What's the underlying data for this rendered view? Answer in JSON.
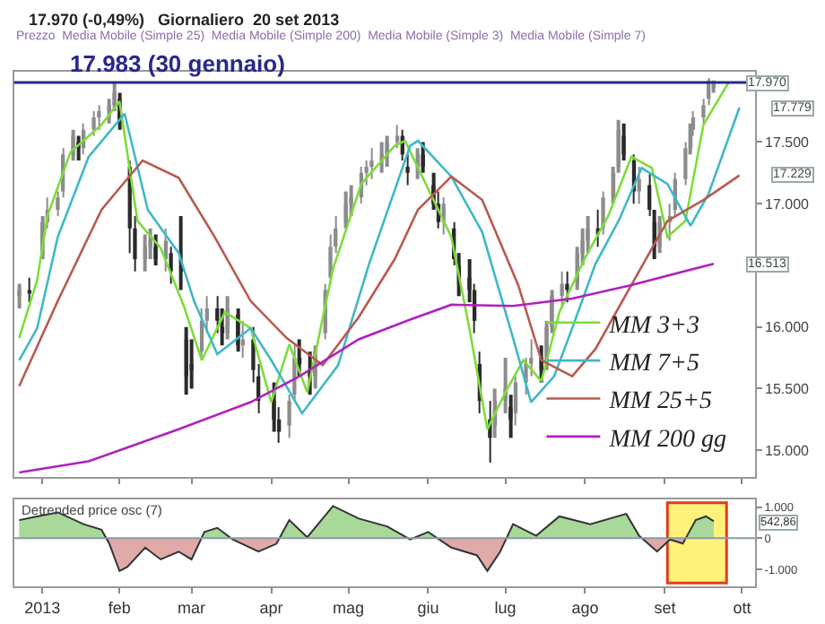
{
  "chart_data": [
    {
      "type": "candlestick",
      "title": "17.970 (-0,49%)   Giornaliero  20 set 2013",
      "colors": [
        "#8c8c8c",
        "#2a2a2a",
        "#8c8c8c",
        "#8c8c8c",
        "#8c8c8c",
        "#8c8c8c",
        "#8c8c8c",
        "#2a2a2a",
        "#8c8c8c",
        "#8c8c8c",
        "#8c8c8c",
        "#8c8c8c",
        "#8c8c8c",
        "#2a2a2a",
        "#2a2a2a",
        "#2a2a2a",
        "#8c8c8c",
        "#8c8c8c",
        "#2a2a2a",
        "#8c8c8c",
        "#2a2a2a",
        "#2a2a2a",
        "#2a2a2a",
        "#2a2a2a",
        "#8c8c8c",
        "#8c8c8c",
        "#2a2a2a",
        "#2a2a2a",
        "#8c8c8c",
        "#2a2a2a",
        "#8c8c8c",
        "#2a2a2a",
        "#2a2a2a",
        "#2a2a2a",
        "#2a2a2a",
        "#8c8c8c",
        "#8c8c8c",
        "#2a2a2a",
        "#2a2a2a",
        "#8c8c8c",
        "#8c8c8c",
        "#8c8c8c",
        "#8c8c8c",
        "#8c8c8c",
        "#8c8c8c",
        "#8c8c8c",
        "#8c8c8c",
        "#8c8c8c",
        "#8c8c8c",
        "#8c8c8c",
        "#8c8c8c",
        "#2a2a2a",
        "#2a2a2a",
        "#8c8c8c",
        "#2a2a2a",
        "#2a2a2a",
        "#2a2a2a",
        "#8c8c8c",
        "#2a2a2a",
        "#2a2a2a",
        "#2a2a2a",
        "#2a2a2a",
        "#2a2a2a",
        "#2a2a2a",
        "#8c8c8c",
        "#8c8c8c",
        "#2a2a2a",
        "#8c8c8c",
        "#8c8c8c",
        "#8c8c8c",
        "#2a2a2a",
        "#8c8c8c",
        "#8c8c8c",
        "#8c8c8c",
        "#2a2a2a",
        "#8c8c8c",
        "#8c8c8c",
        "#8c8c8c",
        "#2a2a2a",
        "#8c8c8c",
        "#8c8c8c",
        "#8c8c8c",
        "#2a2a2a",
        "#2a2a2a",
        "#8c8c8c",
        "#2a2a2a",
        "#2a2a2a",
        "#8c8c8c",
        "#8c8c8c",
        "#8c8c8c",
        "#8c8c8c",
        "#8c8c8c",
        "#8c8c8c",
        "#8c8c8c",
        "#8c8c8c",
        "#8c8c8c"
      ],
      "x": [
        "2012-12-24",
        "2012-12-28",
        "2013-01-02",
        "2013-01-04",
        "2013-01-08",
        "2013-01-10",
        "2013-01-14",
        "2013-01-16",
        "2013-01-18",
        "2013-01-22",
        "2013-01-24",
        "2013-01-28",
        "2013-01-30",
        "2013-02-01",
        "2013-02-05",
        "2013-02-07",
        "2013-02-11",
        "2013-02-13",
        "2013-02-15",
        "2013-02-19",
        "2013-02-21",
        "2013-02-25",
        "2013-02-27",
        "2013-03-01",
        "2013-03-05",
        "2013-03-07",
        "2013-03-11",
        "2013-03-13",
        "2013-03-15",
        "2013-03-19",
        "2013-03-21",
        "2013-03-25",
        "2013-03-27",
        "2013-04-02",
        "2013-04-04",
        "2013-04-08",
        "2013-04-10",
        "2013-04-12",
        "2013-04-16",
        "2013-04-18",
        "2013-04-22",
        "2013-04-24",
        "2013-04-26",
        "2013-04-30",
        "2013-05-02",
        "2013-05-06",
        "2013-05-08",
        "2013-05-10",
        "2013-05-14",
        "2013-05-16",
        "2013-05-20",
        "2013-05-22",
        "2013-05-24",
        "2013-05-28",
        "2013-05-30",
        "2013-06-03",
        "2013-06-05",
        "2013-06-07",
        "2013-06-11",
        "2013-06-13",
        "2013-06-17",
        "2013-06-19",
        "2013-06-21",
        "2013-06-25",
        "2013-06-27",
        "2013-07-01",
        "2013-07-03",
        "2013-07-05",
        "2013-07-09",
        "2013-07-11",
        "2013-07-15",
        "2013-07-17",
        "2013-07-19",
        "2013-07-23",
        "2013-07-25",
        "2013-07-29",
        "2013-07-31",
        "2013-08-02",
        "2013-08-06",
        "2013-08-08",
        "2013-08-12",
        "2013-08-14",
        "2013-08-16",
        "2013-08-20",
        "2013-08-22",
        "2013-08-26",
        "2013-08-28",
        "2013-08-30",
        "2013-09-03",
        "2013-09-05",
        "2013-09-09",
        "2013-09-11",
        "2013-09-12",
        "2013-09-16",
        "2013-09-18",
        "2013-09-20"
      ],
      "ohlc": [
        [
          16250,
          16350,
          16150,
          16300
        ],
        [
          16300,
          16400,
          16200,
          16270
        ],
        [
          16600,
          16900,
          16550,
          16850
        ],
        [
          16850,
          17050,
          16800,
          16950
        ],
        [
          16950,
          17100,
          16900,
          17050
        ],
        [
          17100,
          17450,
          17050,
          17400
        ],
        [
          17400,
          17600,
          17350,
          17550
        ],
        [
          17500,
          17550,
          17350,
          17450
        ],
        [
          17450,
          17650,
          17400,
          17600
        ],
        [
          17600,
          17750,
          17550,
          17700
        ],
        [
          17700,
          17800,
          17600,
          17750
        ],
        [
          17750,
          17850,
          17650,
          17800
        ],
        [
          17800,
          17983,
          17750,
          17900
        ],
        [
          17850,
          17900,
          17600,
          17650
        ],
        [
          17300,
          17350,
          16600,
          16800
        ],
        [
          16800,
          16900,
          16450,
          16550
        ],
        [
          16550,
          16750,
          16450,
          16650
        ],
        [
          16650,
          16800,
          16550,
          16700
        ],
        [
          16650,
          16750,
          16500,
          16550
        ],
        [
          16550,
          16800,
          16450,
          16700
        ],
        [
          16600,
          16650,
          16350,
          16450
        ],
        [
          16500,
          16900,
          16300,
          16450
        ],
        [
          15900,
          16000,
          15450,
          15600
        ],
        [
          15700,
          15900,
          15500,
          15650
        ],
        [
          15800,
          16150,
          15750,
          16050
        ],
        [
          16050,
          16250,
          15950,
          16150
        ],
        [
          16150,
          16250,
          15950,
          16050
        ],
        [
          16000,
          16150,
          15850,
          15950
        ],
        [
          15950,
          16250,
          15900,
          16150
        ],
        [
          16100,
          16150,
          15800,
          15850
        ],
        [
          15850,
          16050,
          15750,
          15900
        ],
        [
          15900,
          16000,
          15550,
          15650
        ],
        [
          15600,
          15700,
          15300,
          15400
        ],
        [
          15400,
          15550,
          15150,
          15250
        ],
        [
          15250,
          15350,
          15060,
          15150
        ],
        [
          15200,
          15450,
          15100,
          15400
        ],
        [
          15450,
          15850,
          15400,
          15750
        ],
        [
          15750,
          15900,
          15600,
          15700
        ],
        [
          15650,
          15800,
          15450,
          15600
        ],
        [
          15600,
          15850,
          15500,
          15800
        ],
        [
          15950,
          16350,
          15900,
          16300
        ],
        [
          16400,
          16750,
          16350,
          16650
        ],
        [
          16650,
          16900,
          16600,
          16800
        ],
        [
          16850,
          17100,
          16800,
          17000
        ],
        [
          17000,
          17150,
          16900,
          17050
        ],
        [
          17050,
          17300,
          17000,
          17250
        ],
        [
          17250,
          17350,
          17150,
          17300
        ],
        [
          17300,
          17450,
          17200,
          17350
        ],
        [
          17350,
          17500,
          17250,
          17400
        ],
        [
          17400,
          17550,
          17300,
          17500
        ],
        [
          17500,
          17640,
          17450,
          17550
        ],
        [
          17550,
          17600,
          17350,
          17400
        ],
        [
          17300,
          17400,
          17150,
          17250
        ],
        [
          17250,
          17450,
          17200,
          17400
        ],
        [
          17400,
          17500,
          17250,
          17300
        ],
        [
          17150,
          17250,
          16950,
          17000
        ],
        [
          17000,
          17100,
          16800,
          16850
        ],
        [
          16850,
          17050,
          16750,
          17000
        ],
        [
          16800,
          16850,
          16500,
          16550
        ],
        [
          16500,
          16600,
          16250,
          16350
        ],
        [
          16400,
          16550,
          16200,
          16300
        ],
        [
          16300,
          16350,
          15950,
          16050
        ],
        [
          15700,
          15800,
          15300,
          15400
        ],
        [
          15250,
          15400,
          14900,
          15100
        ],
        [
          15200,
          15500,
          15100,
          15400
        ],
        [
          15400,
          15750,
          15300,
          15500
        ],
        [
          15350,
          15450,
          15100,
          15250
        ],
        [
          15300,
          15600,
          15200,
          15550
        ],
        [
          15550,
          15750,
          15450,
          15700
        ],
        [
          15700,
          15900,
          15600,
          15750
        ],
        [
          15750,
          15850,
          15550,
          15650
        ],
        [
          15700,
          16050,
          15650,
          16000
        ],
        [
          16000,
          16300,
          15950,
          16250
        ],
        [
          16250,
          16450,
          16150,
          16350
        ],
        [
          16350,
          16450,
          16200,
          16300
        ],
        [
          16350,
          16650,
          16300,
          16600
        ],
        [
          16600,
          16800,
          16500,
          16700
        ],
        [
          16700,
          16900,
          16600,
          16800
        ],
        [
          16800,
          16950,
          16650,
          16750
        ],
        [
          16800,
          17100,
          16750,
          17050
        ],
        [
          17050,
          17300,
          17000,
          17250
        ],
        [
          17300,
          17680,
          17250,
          17600
        ],
        [
          17550,
          17650,
          17350,
          17400
        ],
        [
          17350,
          17400,
          17000,
          17100
        ],
        [
          17100,
          17300,
          17000,
          17200
        ],
        [
          17150,
          17250,
          16900,
          16950
        ],
        [
          16850,
          16950,
          16550,
          16650
        ],
        [
          16650,
          16900,
          16600,
          16850
        ],
        [
          16850,
          17000,
          16700,
          16900
        ],
        [
          16950,
          17250,
          16900,
          17200
        ],
        [
          17200,
          17500,
          17150,
          17450
        ],
        [
          17450,
          17650,
          17400,
          17600
        ],
        [
          17600,
          17750,
          17550,
          17700
        ],
        [
          17700,
          17850,
          17650,
          17800
        ],
        [
          17850,
          18020,
          17800,
          18000
        ],
        [
          17950,
          18000,
          17900,
          17970
        ]
      ],
      "series": [
        {
          "name": "MM 3+3",
          "type": "line",
          "color": "#7ddc3a",
          "x": [
            "2012-12-24",
            "2012-12-31",
            "2013-01-04",
            "2013-01-13",
            "2013-01-25",
            "2013-02-01",
            "2013-02-08",
            "2013-02-17",
            "2013-02-26",
            "2013-03-05",
            "2013-03-14",
            "2013-03-24",
            "2013-04-01",
            "2013-04-08",
            "2013-04-15",
            "2013-04-25",
            "2013-05-06",
            "2013-05-19",
            "2013-05-23",
            "2013-06-01",
            "2013-06-10",
            "2013-06-17",
            "2013-06-24",
            "2013-07-01",
            "2013-07-08",
            "2013-07-15",
            "2013-07-22",
            "2013-08-01",
            "2013-08-10",
            "2013-08-19",
            "2013-08-27",
            "2013-09-02",
            "2013-09-09",
            "2013-09-16",
            "2013-09-26"
          ],
          "values": [
            15910,
            16380,
            16900,
            17420,
            17640,
            17830,
            16860,
            16640,
            16170,
            15730,
            16120,
            15990,
            15390,
            15860,
            15470,
            16470,
            17160,
            17470,
            17510,
            17120,
            16730,
            15990,
            15170,
            15470,
            15730,
            15560,
            16120,
            16560,
            16900,
            17380,
            17290,
            16730,
            16860,
            17640,
            17990
          ]
        },
        {
          "name": "MM 7+5",
          "type": "line",
          "color": "#3fb8c8",
          "x": [
            "2012-12-24",
            "2012-12-31",
            "2013-01-08",
            "2013-01-20",
            "2013-02-03",
            "2013-02-12",
            "2013-02-24",
            "2013-03-02",
            "2013-03-11",
            "2013-03-24",
            "2013-04-01",
            "2013-04-13",
            "2013-04-27",
            "2013-05-09",
            "2013-05-25",
            "2013-05-28",
            "2013-06-10",
            "2013-06-22",
            "2013-07-04",
            "2013-07-11",
            "2013-07-20",
            "2013-07-27",
            "2013-08-05",
            "2013-08-14",
            "2013-08-23",
            "2013-09-02",
            "2013-09-11",
            "2013-09-18",
            "2013-09-30"
          ],
          "values": [
            15730,
            15990,
            16730,
            17380,
            17730,
            16950,
            16600,
            16210,
            15780,
            15990,
            15730,
            15300,
            15690,
            16510,
            17470,
            17510,
            17220,
            16770,
            15910,
            15390,
            15600,
            15990,
            16510,
            16860,
            17290,
            17160,
            16820,
            17080,
            17779
          ]
        },
        {
          "name": "MM 25+5",
          "type": "line",
          "color": "#b85a50",
          "x": [
            "2012-12-24",
            "2013-01-08",
            "2013-01-25",
            "2013-02-10",
            "2013-02-24",
            "2013-03-10",
            "2013-03-24",
            "2013-04-07",
            "2013-04-21",
            "2013-05-05",
            "2013-05-19",
            "2013-05-28",
            "2013-06-10",
            "2013-06-22",
            "2013-07-06",
            "2013-07-15",
            "2013-07-27",
            "2013-08-05",
            "2013-08-19",
            "2013-09-02",
            "2013-09-16",
            "2013-09-30"
          ],
          "values": [
            15520,
            16210,
            16950,
            17350,
            17210,
            16730,
            16210,
            15910,
            15690,
            16080,
            16550,
            16950,
            17220,
            17030,
            16340,
            15730,
            15600,
            15820,
            16340,
            16860,
            17030,
            17229
          ]
        },
        {
          "name": "MM 200 gg",
          "type": "line",
          "color": "#b020c0",
          "x": [
            "2012-12-24",
            "2013-01-20",
            "2013-02-24",
            "2013-03-24",
            "2013-04-12",
            "2013-05-05",
            "2013-05-25",
            "2013-06-10",
            "2013-07-04",
            "2013-07-27",
            "2013-08-19",
            "2013-09-20"
          ],
          "values": [
            14820,
            14910,
            15170,
            15390,
            15600,
            15900,
            16060,
            16180,
            16170,
            16230,
            16340,
            16513
          ]
        }
      ],
      "xlim": [
        "2012-12-22",
        "2013-10-06"
      ],
      "xticks": [
        {
          "value": "2013-01-02",
          "label": null
        },
        {
          "value": "2013-02-01",
          "label": null
        },
        {
          "value": "2013-03-01",
          "label": null
        },
        {
          "value": "2013-04-01",
          "label": null
        },
        {
          "value": "2013-05-01",
          "label": null
        },
        {
          "value": "2013-06-01",
          "label": null
        },
        {
          "value": "2013-07-01",
          "label": null
        },
        {
          "value": "2013-08-01",
          "label": null
        },
        {
          "value": "2013-09-01",
          "label": null
        },
        {
          "value": "2013-10-01",
          "label": null
        }
      ],
      "ylim": [
        14780,
        18070
      ],
      "yticks": [
        {
          "value": 15000,
          "label": "15.000"
        },
        {
          "value": 15500,
          "label": "15.500"
        },
        {
          "value": 16000,
          "label": "16.000"
        },
        {
          "value": 17000,
          "label": "17.000"
        },
        {
          "value": 17500,
          "label": "17.500"
        }
      ],
      "tick_labels": "y",
      "ref_lines": [
        {
          "axis": "y",
          "value": 17983,
          "label": "17.983 (30 gennaio)",
          "color": "#28288c"
        }
      ],
      "annotations": [
        "Prezzo  Media Mobile (Simple 25)  Media Mobile (Simple 200)  Media Mobile (Simple 3)  Media Mobile (Simple 7)",
        {
          "text": "17.970",
          "x": "2013-09-20",
          "y": 17970
        },
        {
          "text": "17.779",
          "x": "2013-09-30",
          "y": 17779
        },
        {
          "text": "17.229",
          "x": "2013-09-30",
          "y": 17229
        },
        {
          "text": "16.513",
          "x": "2013-09-20",
          "y": 16513
        }
      ],
      "legend": "bottom right"
    },
    {
      "type": "area",
      "title": "Detrended price osc (7)",
      "colors": [
        "#a8d89a",
        "#e0aaa8"
      ],
      "x": [
        "2012-12-24",
        "2012-12-31",
        "2013-01-08",
        "2013-01-18",
        "2013-01-25",
        "2013-01-28",
        "2013-02-01",
        "2013-02-04",
        "2013-02-11",
        "2013-02-17",
        "2013-02-24",
        "2013-03-01",
        "2013-03-06",
        "2013-03-11",
        "2013-03-17",
        "2013-03-27",
        "2013-04-03",
        "2013-04-08",
        "2013-04-15",
        "2013-04-25",
        "2013-05-05",
        "2013-05-16",
        "2013-05-25",
        "2013-06-01",
        "2013-06-10",
        "2013-06-20",
        "2013-06-24",
        "2013-06-29",
        "2013-07-04",
        "2013-07-13",
        "2013-07-22",
        "2013-08-03",
        "2013-08-17",
        "2013-08-22",
        "2013-08-29",
        "2013-09-03",
        "2013-09-08",
        "2013-09-13",
        "2013-09-17",
        "2013-09-20"
      ],
      "series": [
        {
          "color": "#333333",
          "values": [
            580,
            700,
            830,
            450,
            270,
            -170,
            -1050,
            -920,
            -300,
            -680,
            -430,
            -680,
            200,
            330,
            -40,
            -430,
            -180,
            580,
            30,
            1030,
            630,
            380,
            -40,
            200,
            -300,
            -550,
            -1050,
            -430,
            450,
            80,
            700,
            450,
            780,
            80,
            -430,
            -40,
            -170,
            580,
            700,
            542.86
          ]
        }
      ],
      "xlim": [
        "2012-12-22",
        "2013-10-06"
      ],
      "xticks": [
        {
          "value": "2013-01-02",
          "label": "2013"
        },
        {
          "value": "2013-02-01",
          "label": "feb"
        },
        {
          "value": "2013-03-01",
          "label": "mar"
        },
        {
          "value": "2013-04-01",
          "label": "apr"
        },
        {
          "value": "2013-05-01",
          "label": "mag"
        },
        {
          "value": "2013-06-01",
          "label": "giu"
        },
        {
          "value": "2013-07-01",
          "label": "lug"
        },
        {
          "value": "2013-08-01",
          "label": "ago"
        },
        {
          "value": "2013-09-01",
          "label": "set"
        },
        {
          "value": "2013-10-01",
          "label": "ott"
        }
      ],
      "ylim": [
        -1550,
        1250
      ],
      "yticks": [
        {
          "value": 1000,
          "label": "1.000"
        },
        0,
        {
          "value": -1000,
          "label": "-1.000"
        }
      ],
      "ref_lines": [
        {
          "axis": "y",
          "value": 0,
          "color": "#8a9aa8"
        }
      ],
      "bands": [
        {
          "axis": "x",
          "from": "2013-09-02",
          "to": "2013-09-25",
          "color": "#fff27a"
        }
      ],
      "annotations": [
        "542,86"
      ]
    }
  ]
}
